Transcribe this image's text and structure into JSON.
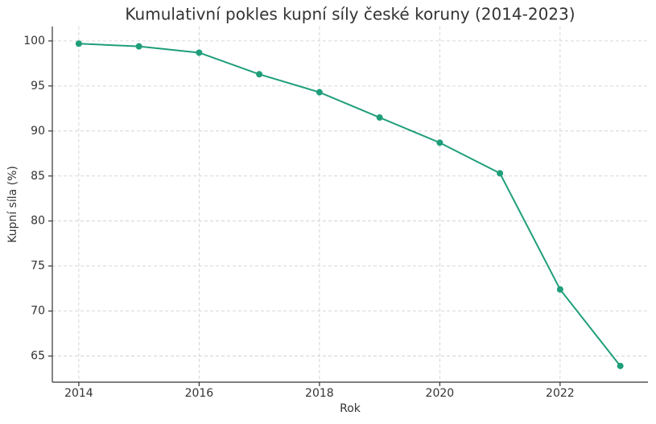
{
  "chart_data": {
    "type": "line",
    "title": "Kumulativní pokles kupní síly české koruny (2014-2023)",
    "x_label": "Rok",
    "y_label": "Kupní síla (%)",
    "x": [
      2014,
      2015,
      2016,
      2017,
      2018,
      2019,
      2020,
      2021,
      2022,
      2023
    ],
    "series": [
      {
        "name": "Kupní síla",
        "color": "#1f9e7a",
        "values": [
          99.7,
          99.4,
          98.7,
          96.3,
          94.3,
          91.5,
          88.7,
          85.3,
          72.4,
          63.9
        ]
      }
    ],
    "xlim": [
      2013.56,
      2023.46
    ],
    "xticks": [
      2014,
      2016,
      2018,
      2020,
      2022
    ],
    "ylim": [
      62.1,
      101.6
    ],
    "yticks": [
      65,
      70,
      75,
      80,
      85,
      90,
      95,
      100
    ],
    "grid": true
  }
}
